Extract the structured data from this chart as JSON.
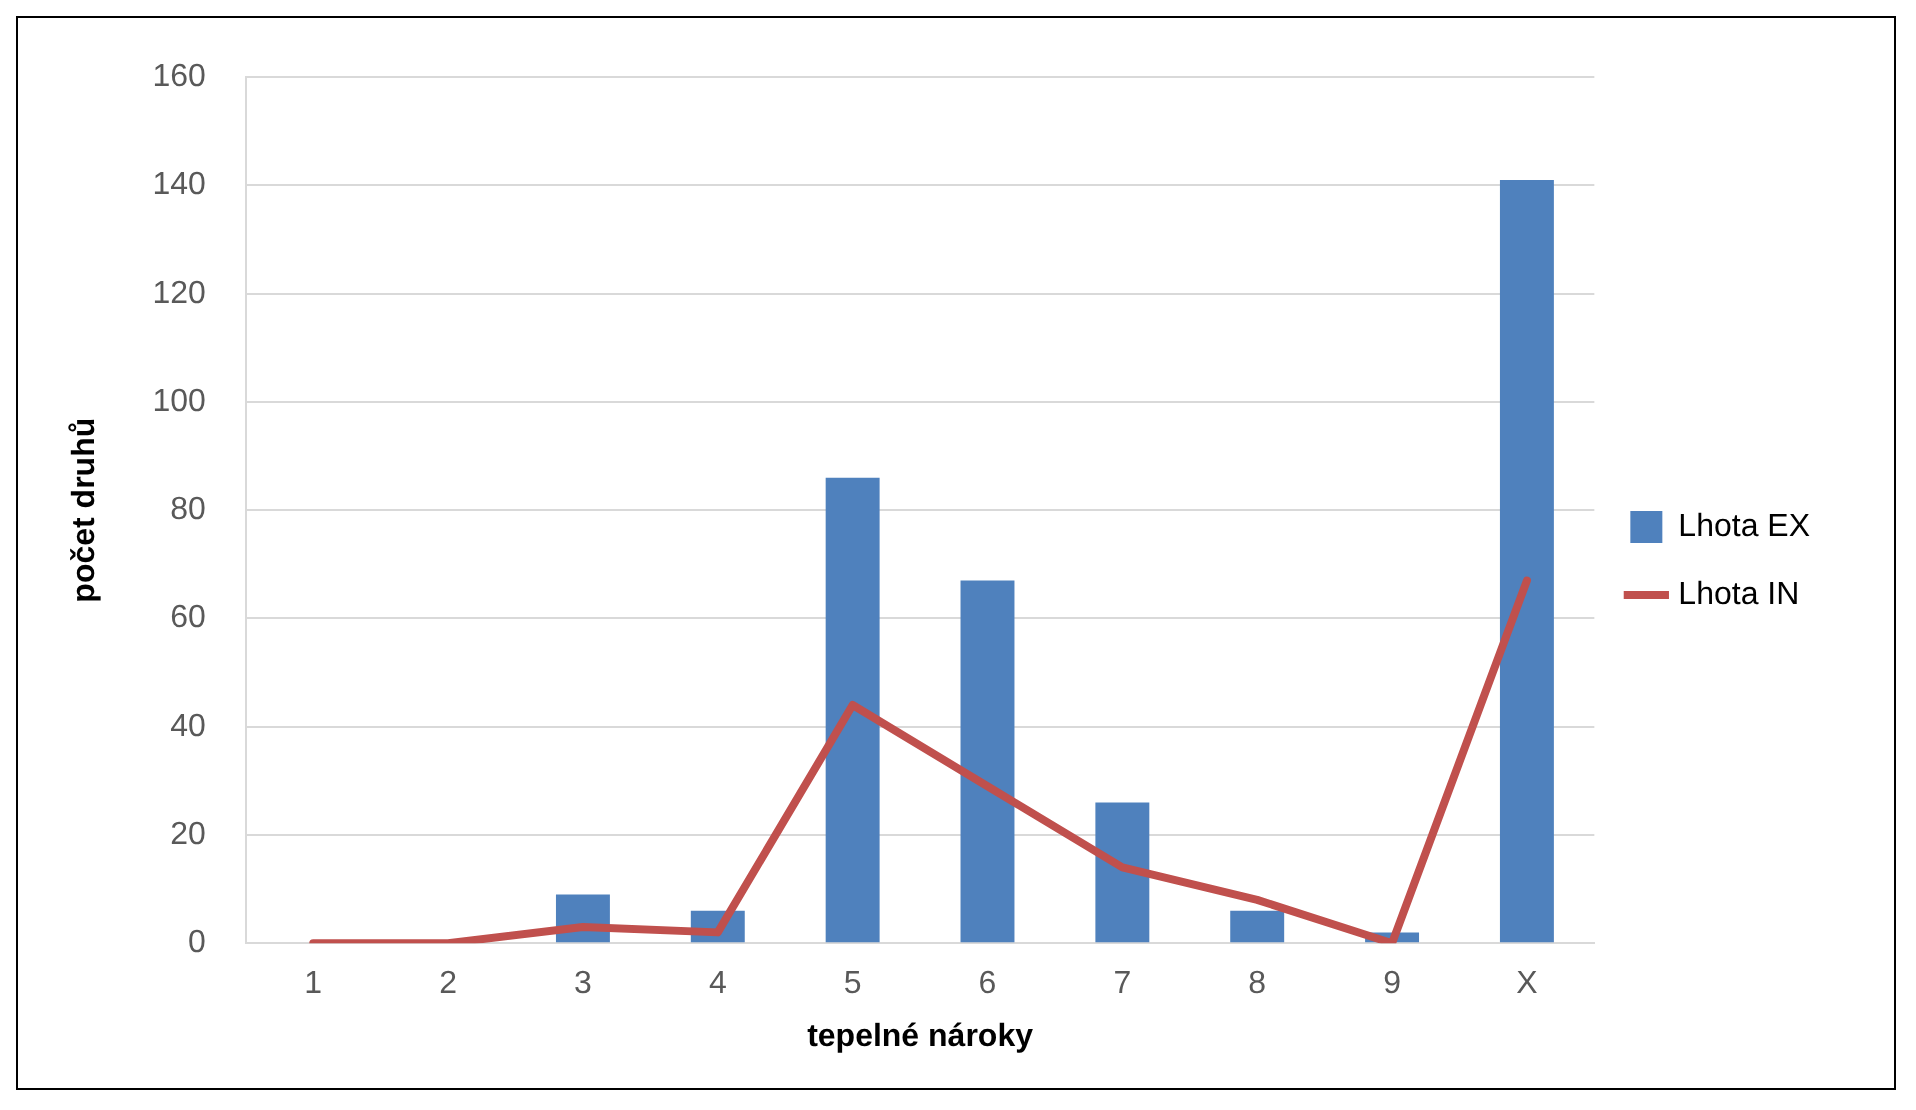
{
  "chart_data": {
    "type": "bar",
    "xlabel": "tepelné nároky",
    "ylabel": "počet druhů",
    "categories": [
      "1",
      "2",
      "3",
      "4",
      "5",
      "6",
      "7",
      "8",
      "9",
      "X"
    ],
    "series": [
      {
        "name": "Lhota EX",
        "color": "#4f81bd",
        "values": [
          0,
          0,
          9,
          6,
          86,
          67,
          26,
          6,
          2,
          141
        ]
      },
      {
        "name": "Lhota IN",
        "type": "line",
        "color": "#c0504d",
        "values": [
          0,
          0,
          3,
          2,
          44,
          29,
          14,
          8,
          0,
          67
        ]
      }
    ],
    "ylim": [
      0,
      160
    ],
    "yticks": [
      0,
      20,
      40,
      60,
      80,
      100,
      120,
      140,
      160
    ],
    "grid": "y",
    "legend": "right",
    "marker": "none"
  }
}
